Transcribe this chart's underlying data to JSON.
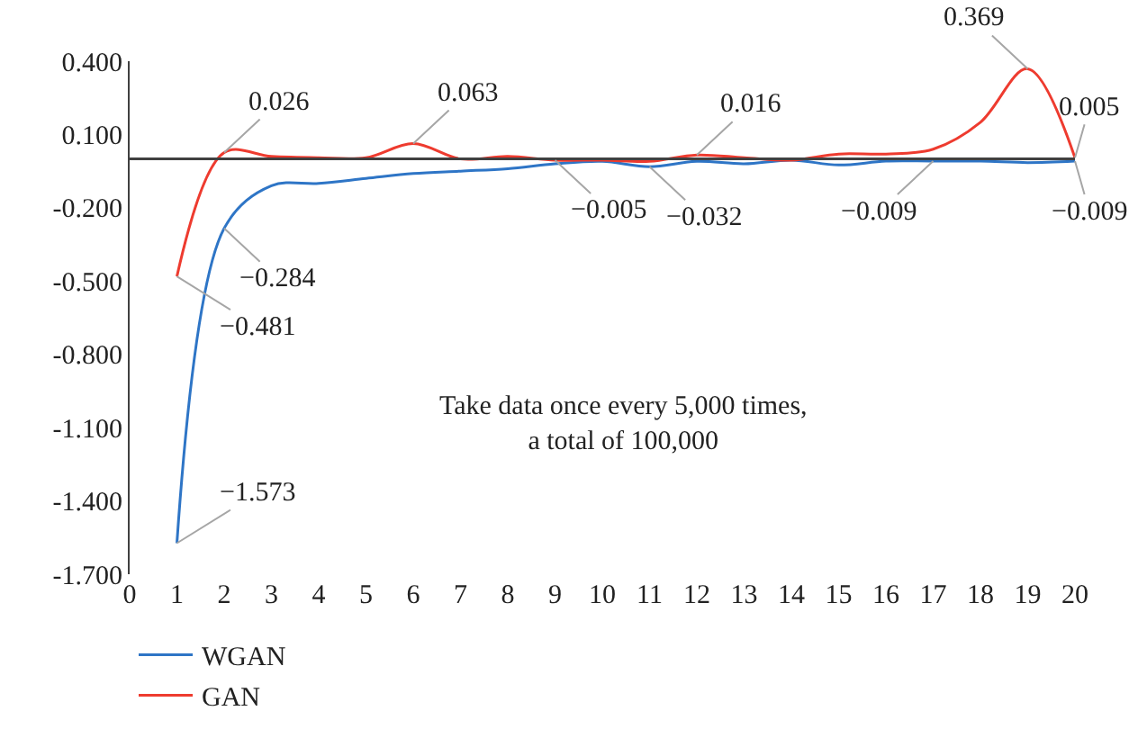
{
  "chart_data": {
    "type": "line",
    "x": [
      1,
      2,
      3,
      4,
      5,
      6,
      7,
      8,
      9,
      10,
      11,
      12,
      13,
      14,
      15,
      16,
      17,
      18,
      19,
      20
    ],
    "series": [
      {
        "name": "WGAN",
        "color": "#2e75c6",
        "values": [
          -1.573,
          -0.284,
          -0.11,
          -0.1,
          -0.08,
          -0.06,
          -0.05,
          -0.04,
          -0.02,
          -0.01,
          -0.032,
          -0.01,
          -0.02,
          -0.005,
          -0.025,
          -0.009,
          -0.009,
          -0.009,
          -0.015,
          -0.009
        ],
        "value_labels": [
          "−1.573",
          "−0.284",
          null,
          null,
          null,
          null,
          null,
          null,
          null,
          null,
          "−0.032",
          null,
          null,
          null,
          null,
          null,
          "−0.009",
          null,
          null,
          "−0.009"
        ]
      },
      {
        "name": "GAN",
        "color": "#ee3b2f",
        "values": [
          -0.481,
          0.026,
          0.01,
          0.005,
          0.005,
          0.063,
          0.0,
          0.01,
          -0.005,
          -0.005,
          -0.01,
          0.016,
          0.005,
          -0.005,
          0.02,
          0.02,
          0.04,
          0.15,
          0.369,
          0.005
        ],
        "value_labels": [
          "−0.481",
          "0.026",
          null,
          null,
          null,
          "0.063",
          null,
          null,
          "−0.005",
          null,
          null,
          "0.016",
          null,
          null,
          null,
          null,
          null,
          null,
          "0.369",
          "0.005"
        ]
      }
    ],
    "xlim": [
      0,
      20
    ],
    "xticks": [
      0,
      1,
      2,
      3,
      4,
      5,
      6,
      7,
      8,
      9,
      10,
      11,
      12,
      13,
      14,
      15,
      16,
      17,
      18,
      19,
      20
    ],
    "ylim": [
      -1.7,
      0.4
    ],
    "yticks": [
      {
        "value": 0.4,
        "label": "0.400"
      },
      {
        "value": 0.1,
        "label": "0.100"
      },
      {
        "value": -0.2,
        "label": "-0.200"
      },
      {
        "value": -0.5,
        "label": "-0.500"
      },
      {
        "value": -0.8,
        "label": "-0.800"
      },
      {
        "value": -1.1,
        "label": "-1.100"
      },
      {
        "value": -1.4,
        "label": "-1.400"
      },
      {
        "value": -1.7,
        "label": "-1.700"
      }
    ],
    "ref_lines": [
      {
        "axis": "y",
        "value": 0,
        "color": "#404040"
      }
    ],
    "annotations": [
      "Take data once every 5,000 times,\na total of 100,000"
    ],
    "legend": "bottom left",
    "grid": false,
    "marker": "none",
    "line_style": "solid"
  }
}
